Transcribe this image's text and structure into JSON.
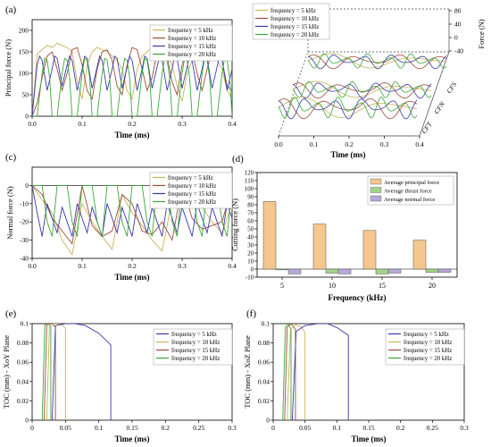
{
  "colors": {
    "f5": "#c8b35a",
    "f10": "#a04a3a",
    "f15": "#3a3aa8",
    "f20": "#3aa83a",
    "bar_principal": "#f3c78e",
    "bar_thrust": "#a3d38a",
    "bar_normal": "#b7a9d8"
  },
  "chart_data": [
    {
      "id": "a",
      "panel_label": "(a)",
      "type": "line",
      "xlabel": "Time (ms)",
      "ylabel": "Principal force (N)",
      "xlim": [
        0,
        0.4
      ],
      "ylim": [
        0,
        225
      ],
      "xticks": [
        "0.0",
        "0.1",
        "0.2",
        "0.3",
        "0.4"
      ],
      "yticks": [
        "0",
        "50",
        "100",
        "150",
        "200"
      ],
      "legend_position": "top-right",
      "series": [
        {
          "name": "frequency = 5 kHz",
          "color_key": "f5",
          "x": [
            0,
            0.01,
            0.02,
            0.03,
            0.04,
            0.05,
            0.06,
            0.07,
            0.08,
            0.09,
            0.1,
            0.11,
            0.12,
            0.13,
            0.14,
            0.15,
            0.16,
            0.17,
            0.18,
            0.19,
            0.2,
            0.21,
            0.22,
            0.23,
            0.24,
            0.25,
            0.26,
            0.27,
            0.28,
            0.29,
            0.3,
            0.31,
            0.32,
            0.33,
            0.34,
            0.35,
            0.36,
            0.37,
            0.38,
            0.39,
            0.4
          ],
          "y": [
            0,
            145,
            155,
            165,
            160,
            170,
            165,
            160,
            150,
            80,
            40,
            120,
            150,
            160,
            155,
            150,
            140,
            130,
            110,
            60,
            40,
            110,
            140,
            150,
            160,
            150,
            145,
            140,
            120,
            70,
            35,
            100,
            130,
            140,
            150,
            145,
            140,
            130,
            110,
            60,
            40
          ]
        },
        {
          "name": "frequency = 10 kHz",
          "color_key": "f10",
          "x": [
            0,
            0.01,
            0.02,
            0.03,
            0.04,
            0.05,
            0.06,
            0.07,
            0.08,
            0.09,
            0.1,
            0.11,
            0.12,
            0.13,
            0.14,
            0.15,
            0.16,
            0.17,
            0.18,
            0.19,
            0.2,
            0.21,
            0.22,
            0.23,
            0.24,
            0.25,
            0.26,
            0.27,
            0.28,
            0.29,
            0.3,
            0.31,
            0.32,
            0.33,
            0.34,
            0.35,
            0.36,
            0.37,
            0.38,
            0.39,
            0.4
          ],
          "y": [
            0,
            30,
            90,
            140,
            150,
            110,
            60,
            100,
            155,
            160,
            120,
            60,
            40,
            110,
            150,
            155,
            130,
            70,
            50,
            120,
            160,
            155,
            110,
            60,
            90,
            150,
            160,
            140,
            80,
            50,
            120,
            155,
            150,
            100,
            60,
            110,
            155,
            160,
            130,
            70,
            60
          ]
        },
        {
          "name": "frequency = 15 kHz",
          "color_key": "f15",
          "x": [
            0,
            0.01,
            0.015,
            0.02,
            0.03,
            0.04,
            0.045,
            0.05,
            0.06,
            0.07,
            0.075,
            0.08,
            0.09,
            0.1,
            0.105,
            0.11,
            0.12,
            0.13,
            0.135,
            0.14,
            0.15,
            0.16,
            0.165,
            0.17,
            0.18,
            0.19,
            0.195,
            0.2,
            0.21,
            0.22,
            0.225,
            0.23,
            0.24,
            0.25,
            0.255,
            0.26,
            0.27,
            0.28,
            0.285,
            0.29,
            0.3,
            0.31,
            0.315,
            0.32,
            0.33,
            0.34,
            0.345,
            0.35,
            0.36,
            0.37,
            0.375,
            0.38,
            0.39,
            0.4
          ],
          "y": [
            0,
            120,
            140,
            130,
            60,
            110,
            140,
            135,
            70,
            120,
            140,
            130,
            60,
            110,
            140,
            135,
            65,
            115,
            140,
            130,
            60,
            110,
            140,
            135,
            65,
            115,
            140,
            130,
            60,
            110,
            140,
            135,
            65,
            115,
            140,
            130,
            60,
            110,
            140,
            135,
            65,
            115,
            140,
            130,
            60,
            110,
            140,
            135,
            65,
            115,
            140,
            130,
            60,
            110
          ]
        },
        {
          "name": "frequency = 20 kHz",
          "color_key": "f20",
          "x": [
            0,
            0.01,
            0.02,
            0.025,
            0.03,
            0.035,
            0.04,
            0.05,
            0.06,
            0.065,
            0.07,
            0.075,
            0.08,
            0.09,
            0.1,
            0.105,
            0.11,
            0.115,
            0.12,
            0.13,
            0.14,
            0.145,
            0.15,
            0.155,
            0.16,
            0.17,
            0.18,
            0.185,
            0.19,
            0.195,
            0.2,
            0.21,
            0.22,
            0.225,
            0.23,
            0.235,
            0.24,
            0.25,
            0.26,
            0.265,
            0.27,
            0.275,
            0.28,
            0.29,
            0.3,
            0.305,
            0.31,
            0.315,
            0.32,
            0.33,
            0.34,
            0.345,
            0.35,
            0.355,
            0.36,
            0.37,
            0.38,
            0.385,
            0.39,
            0.395,
            0.4
          ],
          "y": [
            0,
            0,
            100,
            135,
            130,
            90,
            0,
            0,
            100,
            135,
            130,
            90,
            0,
            0,
            100,
            135,
            130,
            90,
            0,
            0,
            100,
            135,
            130,
            90,
            0,
            0,
            100,
            135,
            130,
            90,
            0,
            0,
            100,
            135,
            130,
            90,
            0,
            0,
            100,
            135,
            130,
            90,
            0,
            0,
            100,
            135,
            130,
            90,
            0,
            0,
            100,
            135,
            130,
            90,
            0,
            0,
            100,
            135,
            130,
            90,
            0
          ]
        }
      ]
    },
    {
      "id": "b",
      "panel_label": "(b)",
      "type": "line",
      "xlabel": "Time (ms)",
      "zlabel": "Force (N)",
      "xlim": [
        0,
        0.4
      ],
      "xticks": [
        "0.0",
        "0.1",
        "0.2",
        "0.3",
        "0.4"
      ],
      "zticks": [
        "80",
        "40",
        "0",
        "-40"
      ],
      "depth_labels": [
        "CFS",
        "CFN",
        "CFT"
      ],
      "legend_position": "top-left",
      "series": [
        {
          "name": "frequency = 5 kHz",
          "color_key": "f5"
        },
        {
          "name": "frequency = 10 kHz",
          "color_key": "f10"
        },
        {
          "name": "frequency = 15 kHz",
          "color_key": "f15"
        },
        {
          "name": "frequency = 20 kHz",
          "color_key": "f20"
        }
      ]
    },
    {
      "id": "c",
      "panel_label": "(c)",
      "type": "line",
      "xlabel": "Time (ms)",
      "ylabel": "Normal force (N)",
      "xlim": [
        0,
        0.4
      ],
      "ylim": [
        -40,
        10
      ],
      "xticks": [
        "0.0",
        "0.1",
        "0.2",
        "0.3",
        "0.4"
      ],
      "yticks": [
        "0",
        "-10",
        "-20",
        "-30",
        "-40"
      ],
      "legend_position": "top-right",
      "series": [
        {
          "name": "frequency = 5 kHz",
          "color_key": "f5",
          "x": [
            0,
            0.02,
            0.04,
            0.06,
            0.08,
            0.1,
            0.12,
            0.14,
            0.16,
            0.18,
            0.2,
            0.22,
            0.24,
            0.26,
            0.28,
            0.3,
            0.32,
            0.34,
            0.36,
            0.38,
            0.4
          ],
          "y": [
            0,
            -8,
            -15,
            -30,
            -38,
            -10,
            -20,
            -28,
            -35,
            -5,
            -15,
            -22,
            -30,
            -36,
            -8,
            2,
            -5,
            -12,
            -20,
            -26,
            -10
          ]
        },
        {
          "name": "frequency = 10 kHz",
          "color_key": "f10",
          "x": [
            0,
            0.02,
            0.04,
            0.06,
            0.08,
            0.1,
            0.12,
            0.14,
            0.16,
            0.18,
            0.2,
            0.22,
            0.24,
            0.26,
            0.28,
            0.3,
            0.32,
            0.34,
            0.36,
            0.38,
            0.4
          ],
          "y": [
            0,
            -5,
            -18,
            -25,
            -32,
            0,
            -22,
            -28,
            -25,
            -5,
            -10,
            -25,
            -27,
            -20,
            -30,
            0,
            -18,
            -24,
            -22,
            -20,
            0
          ]
        },
        {
          "name": "frequency = 15 kHz",
          "color_key": "f15",
          "x": [
            0,
            0.01,
            0.02,
            0.03,
            0.04,
            0.05,
            0.06,
            0.07,
            0.08,
            0.09,
            0.1,
            0.11,
            0.12,
            0.13,
            0.14,
            0.15,
            0.16,
            0.17,
            0.18,
            0.19,
            0.2,
            0.21,
            0.22,
            0.23,
            0.24,
            0.25,
            0.26,
            0.27,
            0.28,
            0.29,
            0.3,
            0.31,
            0.32,
            0.33,
            0.34,
            0.35,
            0.36,
            0.37,
            0.38,
            0.39,
            0.4
          ],
          "y": [
            0,
            -15,
            -28,
            -10,
            -18,
            -26,
            -12,
            -20,
            -28,
            -10,
            -18,
            -26,
            -12,
            -20,
            -28,
            -10,
            -18,
            -26,
            -12,
            -20,
            -28,
            -10,
            -18,
            -26,
            -12,
            -20,
            -28,
            -10,
            -18,
            -26,
            -12,
            -20,
            -28,
            -10,
            -18,
            -26,
            -12,
            -20,
            -28,
            -10,
            -18
          ]
        },
        {
          "name": "frequency = 20 kHz",
          "color_key": "f20",
          "x": [
            0,
            0.02,
            0.03,
            0.04,
            0.05,
            0.07,
            0.08,
            0.09,
            0.1,
            0.12,
            0.13,
            0.14,
            0.15,
            0.17,
            0.18,
            0.19,
            0.2,
            0.22,
            0.23,
            0.24,
            0.25,
            0.27,
            0.28,
            0.29,
            0.3,
            0.32,
            0.33,
            0.34,
            0.35,
            0.37,
            0.38,
            0.39,
            0.4
          ],
          "y": [
            0,
            0,
            -20,
            -28,
            0,
            0,
            -20,
            -28,
            0,
            0,
            -20,
            -28,
            0,
            0,
            -20,
            -28,
            0,
            0,
            -20,
            -28,
            0,
            0,
            -20,
            -28,
            0,
            0,
            -20,
            -28,
            0,
            0,
            -20,
            -28,
            0
          ]
        }
      ]
    },
    {
      "id": "d",
      "panel_label": "(d)",
      "type": "bar",
      "xlabel": "Frequency (kHz)",
      "ylabel": "Cutting force (N)",
      "ylim": [
        -10,
        120
      ],
      "yticks": [
        "-10",
        "0",
        "10",
        "20",
        "30",
        "40",
        "50",
        "60",
        "70",
        "80",
        "90",
        "100",
        "110",
        "120"
      ],
      "categories": [
        "5",
        "10",
        "15",
        "20"
      ],
      "legend_position": "top-right",
      "series": [
        {
          "name": "Average principal  force",
          "color_key": "bar_principal",
          "values": [
            84,
            56,
            48,
            36
          ]
        },
        {
          "name": "Average thrust force",
          "color_key": "bar_thrust",
          "values": [
            -1,
            -5,
            -6,
            -4
          ]
        },
        {
          "name": "Average normal force",
          "color_key": "bar_normal",
          "values": [
            -6,
            -6,
            -5,
            -4
          ]
        }
      ]
    },
    {
      "id": "e",
      "panel_label": "(e)",
      "type": "line",
      "xlabel": "Time (ms)",
      "ylabel": "TOC (mm) - XoY Plane",
      "xlim": [
        0,
        0.3
      ],
      "ylim": [
        0,
        0.1
      ],
      "xticks": [
        "0",
        "0.05",
        "0.1",
        "0.15",
        "0.2",
        "0.25",
        "0.3"
      ],
      "yticks": [
        "0",
        "0.02",
        "0.04",
        "0.06",
        "0.08",
        "0.1"
      ],
      "legend_position": "top-right",
      "series": [
        {
          "name": "frequency = 5 kHz",
          "color_key": "f15",
          "x": [
            0.03,
            0.035,
            0.05,
            0.065,
            0.08,
            0.1,
            0.118,
            0.118
          ],
          "y": [
            0,
            0.098,
            0.1,
            0.1,
            0.098,
            0.09,
            0.078,
            0
          ]
        },
        {
          "name": "frequency = 10 kHz",
          "color_key": "f5",
          "x": [
            0.022,
            0.026,
            0.035,
            0.045,
            0.05,
            0.05
          ],
          "y": [
            0,
            0.099,
            0.1,
            0.099,
            0.095,
            0
          ]
        },
        {
          "name": "frequency = 15 kHz",
          "color_key": "f10",
          "x": [
            0.018,
            0.022,
            0.028,
            0.035,
            0.035
          ],
          "y": [
            0,
            0.099,
            0.1,
            0.097,
            0
          ]
        },
        {
          "name": "frequency = 20 kHz",
          "color_key": "f20",
          "x": [
            0.015,
            0.019,
            0.024,
            0.028,
            0.028
          ],
          "y": [
            0,
            0.099,
            0.1,
            0.097,
            0
          ]
        }
      ]
    },
    {
      "id": "f",
      "panel_label": "(f)",
      "type": "line",
      "xlabel": "Time (ms)",
      "ylabel": "TOC (mm) - XoZ Plane",
      "xlim": [
        0,
        0.3
      ],
      "ylim": [
        0,
        0.1
      ],
      "xticks": [
        "0",
        "0.05",
        "0.1",
        "0.15",
        "0.2",
        "0.25",
        "0.3"
      ],
      "yticks": [
        "0",
        "0.02",
        "0.04",
        "0.06",
        "0.08",
        "0.1"
      ],
      "legend_position": "top-right",
      "series": [
        {
          "name": "frequency = 5 kHz",
          "color_key": "f15",
          "x": [
            0.03,
            0.036,
            0.05,
            0.07,
            0.085,
            0.1,
            0.118,
            0.118
          ],
          "y": [
            0,
            0.092,
            0.098,
            0.1,
            0.1,
            0.096,
            0.088,
            0
          ]
        },
        {
          "name": "frequency = 10 kHz",
          "color_key": "f5",
          "x": [
            0.022,
            0.027,
            0.035,
            0.045,
            0.05,
            0.05
          ],
          "y": [
            0,
            0.094,
            0.099,
            0.096,
            0.09,
            0
          ]
        },
        {
          "name": "frequency = 15 kHz",
          "color_key": "f10",
          "x": [
            0.018,
            0.022,
            0.028,
            0.035,
            0.035
          ],
          "y": [
            0,
            0.096,
            0.1,
            0.094,
            0
          ]
        },
        {
          "name": "frequency = 20 kHz",
          "color_key": "f20",
          "x": [
            0.015,
            0.019,
            0.024,
            0.028,
            0.028
          ],
          "y": [
            0,
            0.096,
            0.1,
            0.094,
            0
          ]
        }
      ]
    }
  ]
}
